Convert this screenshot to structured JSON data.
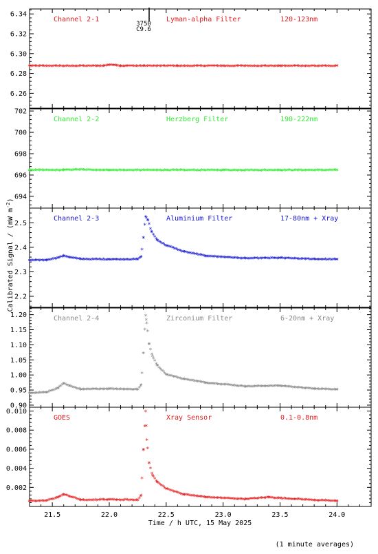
{
  "figure": {
    "ylabel_main": "Calibrated Signal / (mW m",
    "ylabel_sup": "-2",
    "ylabel_close": ")",
    "xlabel": "Time / h UTC, 15 May 2025",
    "footnote": "(1 minute averages)",
    "marker": "*",
    "x_ticks": [
      "21.5",
      "22.0",
      "22.5",
      "23.0",
      "23.5",
      "24.0"
    ]
  },
  "chart_data": [
    {
      "type": "scatter",
      "channel": "Channel 2-1",
      "filter": "Lyman-alpha Filter",
      "band": "120-123nm",
      "color": "#e41a1c",
      "xlim": [
        21.3,
        24.3
      ],
      "ylim": [
        6.245,
        6.345
      ],
      "yticks": [
        "6.26",
        "6.28",
        "6.30",
        "6.32",
        "6.34"
      ],
      "annotation": {
        "value": "3750",
        "sub": "C9.6",
        "x": 22.32
      },
      "x": [
        21.3,
        21.9,
        21.95,
        22.0,
        22.05,
        22.1,
        22.15,
        22.3,
        22.6,
        23.0,
        23.5,
        24.0
      ],
      "y": [
        6.287,
        6.287,
        6.287,
        6.288,
        6.288,
        6.287,
        6.287,
        6.287,
        6.287,
        6.287,
        6.287,
        6.287
      ]
    },
    {
      "type": "scatter",
      "channel": "Channel 2-2",
      "filter": "Herzberg Filter",
      "band": "190-222nm",
      "color": "#33e833",
      "xlim": [
        21.3,
        24.3
      ],
      "ylim": [
        692.9,
        702.2
      ],
      "yticks": [
        "694",
        "696",
        "698",
        "700",
        "702"
      ],
      "x": [
        21.3,
        21.6,
        21.7,
        22.0,
        22.5,
        23.0,
        23.5,
        24.0
      ],
      "y": [
        696.4,
        696.4,
        696.45,
        696.4,
        696.4,
        696.4,
        696.4,
        696.4
      ]
    },
    {
      "type": "scatter",
      "channel": "Channel 2-3",
      "filter": "Aluminium Filter",
      "band": "17-80nm + Xray",
      "color": "#1414d2",
      "xlim": [
        21.3,
        24.3
      ],
      "ylim": [
        2.155,
        2.56
      ],
      "yticks": [
        "2.2",
        "2.3",
        "2.4",
        "2.5"
      ],
      "x": [
        21.3,
        21.45,
        21.55,
        21.6,
        21.65,
        21.75,
        22.0,
        22.25,
        22.28,
        22.3,
        22.32,
        22.34,
        22.37,
        22.42,
        22.5,
        22.65,
        22.85,
        23.2,
        23.5,
        23.8,
        24.0
      ],
      "y": [
        2.344,
        2.345,
        2.355,
        2.362,
        2.357,
        2.349,
        2.348,
        2.348,
        2.36,
        2.437,
        2.522,
        2.507,
        2.462,
        2.427,
        2.405,
        2.38,
        2.362,
        2.352,
        2.354,
        2.349,
        2.348
      ]
    },
    {
      "type": "scatter",
      "channel": "Channel 2-4",
      "filter": "Zirconium Filter",
      "band": "6-20nm + Xray",
      "color": "#888888",
      "xlim": [
        21.3,
        24.3
      ],
      "ylim": [
        0.893,
        1.222
      ],
      "yticks": [
        "0.90",
        "0.95",
        "1.00",
        "1.05",
        "1.10",
        "1.15",
        "1.20"
      ],
      "x": [
        21.3,
        21.45,
        21.55,
        21.6,
        21.65,
        21.75,
        22.0,
        22.25,
        22.28,
        22.3,
        22.32,
        22.33,
        22.35,
        22.38,
        22.42,
        22.5,
        22.65,
        22.85,
        23.2,
        23.5,
        23.8,
        24.0
      ],
      "y": [
        0.938,
        0.94,
        0.955,
        0.97,
        0.962,
        0.95,
        0.952,
        0.95,
        0.965,
        1.07,
        1.195,
        1.17,
        1.1,
        1.06,
        1.03,
        1.0,
        0.985,
        0.972,
        0.96,
        0.962,
        0.952,
        0.95
      ]
    },
    {
      "type": "scatter",
      "channel": "GOES",
      "filter": "Xray Sensor",
      "band": "0.1-0.8nm",
      "color": "#e41a1c",
      "xlim": [
        21.3,
        24.3
      ],
      "ylim": [
        0.0,
        0.0104
      ],
      "yticks": [
        "0.002",
        "0.004",
        "0.006",
        "0.008",
        "0.010"
      ],
      "x": [
        21.3,
        21.45,
        21.55,
        21.6,
        21.65,
        21.75,
        22.0,
        22.25,
        22.28,
        22.3,
        22.32,
        22.33,
        22.35,
        22.38,
        22.42,
        22.5,
        22.65,
        22.85,
        23.2,
        23.4,
        23.5,
        23.8,
        24.0
      ],
      "y": [
        0.0005,
        0.00055,
        0.0009,
        0.0012,
        0.001,
        0.0006,
        0.00065,
        0.0006,
        0.0011,
        0.0059,
        0.0099,
        0.0069,
        0.0045,
        0.0032,
        0.0025,
        0.0018,
        0.0012,
        0.0009,
        0.0007,
        0.0009,
        0.0008,
        0.0006,
        0.0005
      ]
    }
  ]
}
